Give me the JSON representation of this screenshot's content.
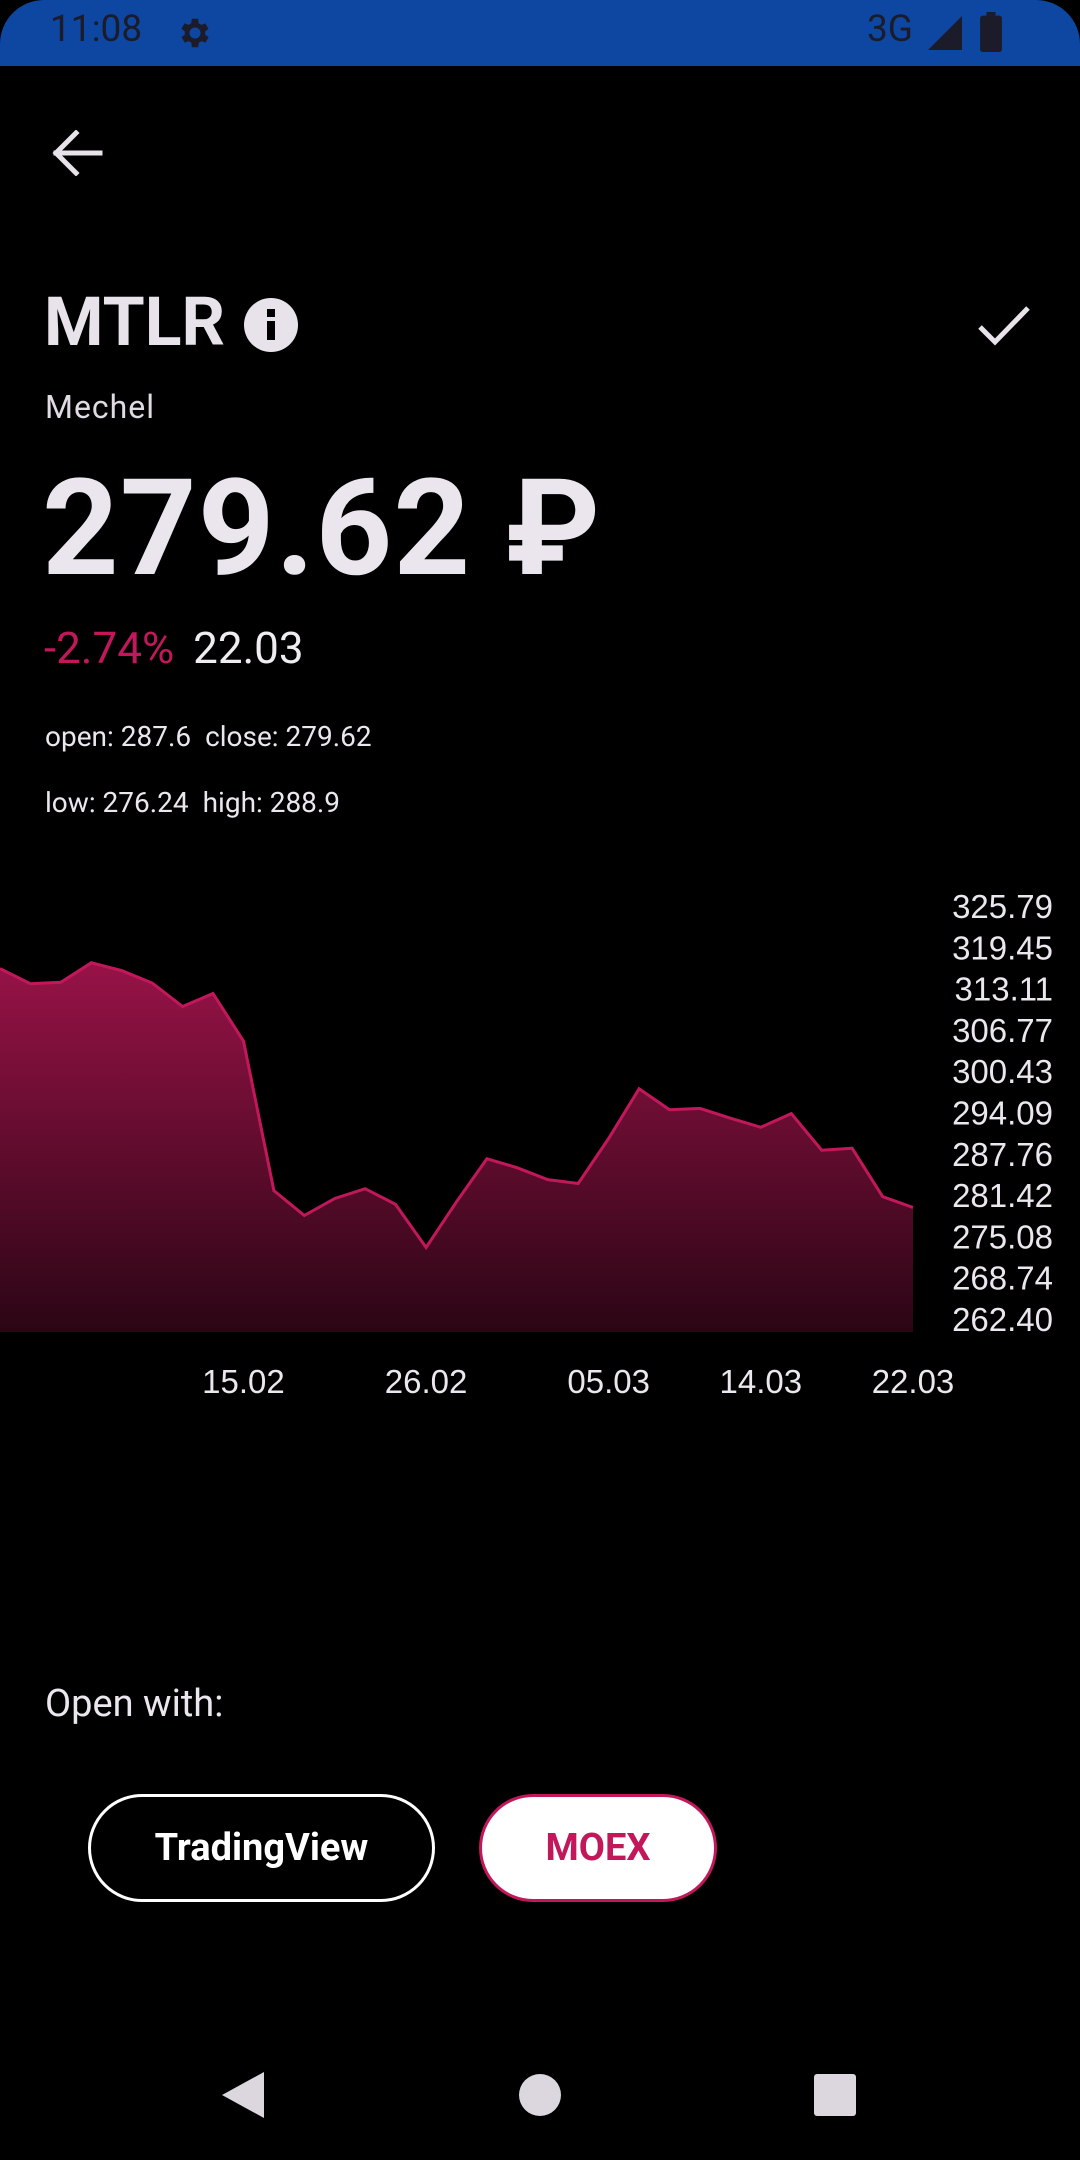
{
  "status_bar": {
    "time": "11:08",
    "network": "3G",
    "icons": [
      "gear-icon",
      "signal-icon",
      "battery-icon"
    ]
  },
  "header": {
    "ticker": "MTLR",
    "company": "Mechel",
    "back_icon": "arrow-left-icon",
    "info_icon": "info-icon",
    "action_icon": "check-icon"
  },
  "quote": {
    "price": "279.62 ₽",
    "change_pct": "-2.74%",
    "date": "22.03",
    "open": "open: 287.6",
    "close": "close: 279.62",
    "low": "low: 276.24",
    "high": "high: 288.9"
  },
  "open_with": {
    "label": "Open with:",
    "buttons": [
      "TradingView",
      "MOEX"
    ]
  },
  "colors": {
    "accent": "#c2185b",
    "status_bar": "#0d47a1",
    "background": "#000000"
  },
  "chart_data": {
    "type": "area",
    "x": [
      "",
      "",
      "",
      "",
      "",
      "",
      "",
      "",
      "15.02",
      "",
      "",
      "",
      "",
      "",
      "26.02",
      "",
      "",
      "",
      "",
      "",
      "05.03",
      "",
      "",
      "",
      "",
      "14.03",
      "",
      "",
      "",
      "",
      "22.03"
    ],
    "x_ticks": [
      "15.02",
      "26.02",
      "05.03",
      "14.03",
      "22.03"
    ],
    "values": [
      316.2,
      313.9,
      314.1,
      317.1,
      315.9,
      314.0,
      310.4,
      312.4,
      305.1,
      282.2,
      278.4,
      281.0,
      282.5,
      280.1,
      273.5,
      280.5,
      287.1,
      285.7,
      283.9,
      283.3,
      290.2,
      297.8,
      294.6,
      294.8,
      293.3,
      291.9,
      294.0,
      288.4,
      288.7,
      281.3,
      279.62
    ],
    "y_ticks": [
      "325.79",
      "319.45",
      "313.11",
      "306.77",
      "300.43",
      "294.09",
      "287.76",
      "281.42",
      "275.08",
      "268.74",
      "262.40"
    ],
    "ylim": [
      262.4,
      325.79
    ],
    "grid": false,
    "color": "#c2185b"
  }
}
